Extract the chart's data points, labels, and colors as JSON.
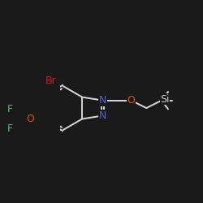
{
  "bg_color": "#1a1a1a",
  "bond_color": "#d8d8d8",
  "bond_width": 1.4,
  "figsize": [
    2.5,
    2.5
  ],
  "dpi": 100,
  "atoms": {
    "Br": {
      "color": "#cc2222"
    },
    "N": {
      "color": "#4466ff"
    },
    "O": {
      "color": "#dd5500"
    },
    "F": {
      "color": "#44cc44"
    },
    "Si": {
      "color": "#cccccc"
    },
    "C": {
      "color": "#d8d8d8"
    }
  }
}
